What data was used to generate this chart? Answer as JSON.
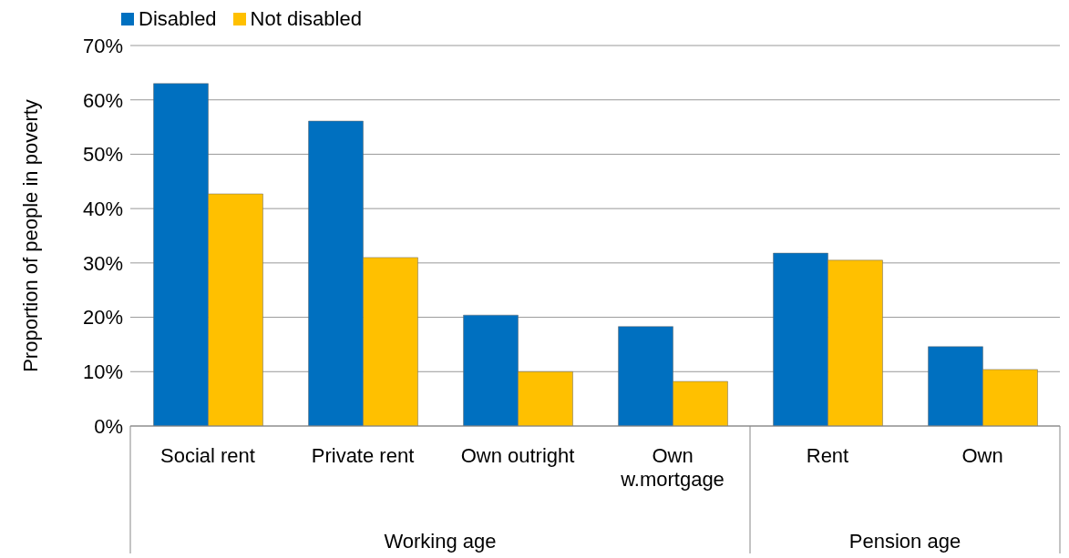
{
  "chart_data": {
    "type": "bar",
    "ylabel": "Proportion of people in poverty",
    "categories": [
      "Social rent",
      "Private rent",
      "Own outright",
      "Own w.mortgage",
      "Rent",
      "Own"
    ],
    "series": [
      {
        "name": "Disabled",
        "color": "#0070c0",
        "values": [
          63.0,
          56.1,
          20.4,
          18.3,
          31.8,
          14.6
        ]
      },
      {
        "name": "Not disabled",
        "color": "#ffc000",
        "values": [
          42.7,
          31.0,
          10.0,
          8.2,
          30.5,
          10.4
        ]
      }
    ],
    "ylim": [
      0,
      70
    ],
    "yticks": [
      {
        "value": 0,
        "label": "0%"
      },
      {
        "value": 10,
        "label": "10%"
      },
      {
        "value": 20,
        "label": "20%"
      },
      {
        "value": 30,
        "label": "30%"
      },
      {
        "value": 40,
        "label": "40%"
      },
      {
        "value": 50,
        "label": "50%"
      },
      {
        "value": 60,
        "label": "60%"
      },
      {
        "value": 70,
        "label": "70%"
      }
    ],
    "grid": "y",
    "legend": "top left",
    "annotations": [
      "Working age",
      "Pension age"
    ]
  }
}
